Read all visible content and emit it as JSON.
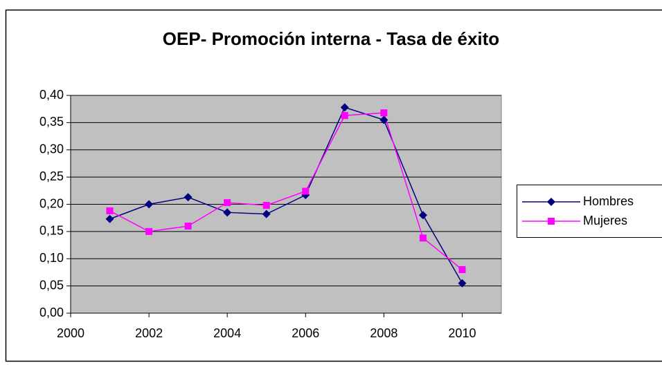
{
  "chart_data": {
    "type": "line",
    "title": "OEP- Promoción interna - Tasa de éxito",
    "x": [
      2001,
      2002,
      2003,
      2004,
      2005,
      2006,
      2007,
      2008,
      2009,
      2010
    ],
    "series": [
      {
        "name": "Hombres",
        "color": "#000080",
        "marker": "diamond",
        "values": [
          0.173,
          0.2,
          0.213,
          0.185,
          0.182,
          0.217,
          0.378,
          0.355,
          0.18,
          0.055
        ]
      },
      {
        "name": "Mujeres",
        "color": "#ff00ff",
        "marker": "square",
        "values": [
          0.188,
          0.15,
          0.16,
          0.203,
          0.198,
          0.224,
          0.363,
          0.368,
          0.138,
          0.08
        ]
      }
    ],
    "xlim": [
      2000,
      2011
    ],
    "xticks": [
      2000,
      2002,
      2004,
      2006,
      2008,
      2010
    ],
    "ylim": [
      0,
      0.4
    ],
    "yticks": [
      {
        "value": 0,
        "label": "0,00"
      },
      {
        "value": 0.05,
        "label": "0,05"
      },
      {
        "value": 0.1,
        "label": "0,10"
      },
      {
        "value": 0.15,
        "label": "0,15"
      },
      {
        "value": 0.2,
        "label": "0,20"
      },
      {
        "value": 0.25,
        "label": "0,25"
      },
      {
        "value": 0.3,
        "label": "0,30"
      },
      {
        "value": 0.35,
        "label": "0,35"
      },
      {
        "value": 0.4,
        "label": "0,40"
      }
    ],
    "grid": true,
    "plot_background": "#c0c0c0",
    "legend": "right"
  }
}
